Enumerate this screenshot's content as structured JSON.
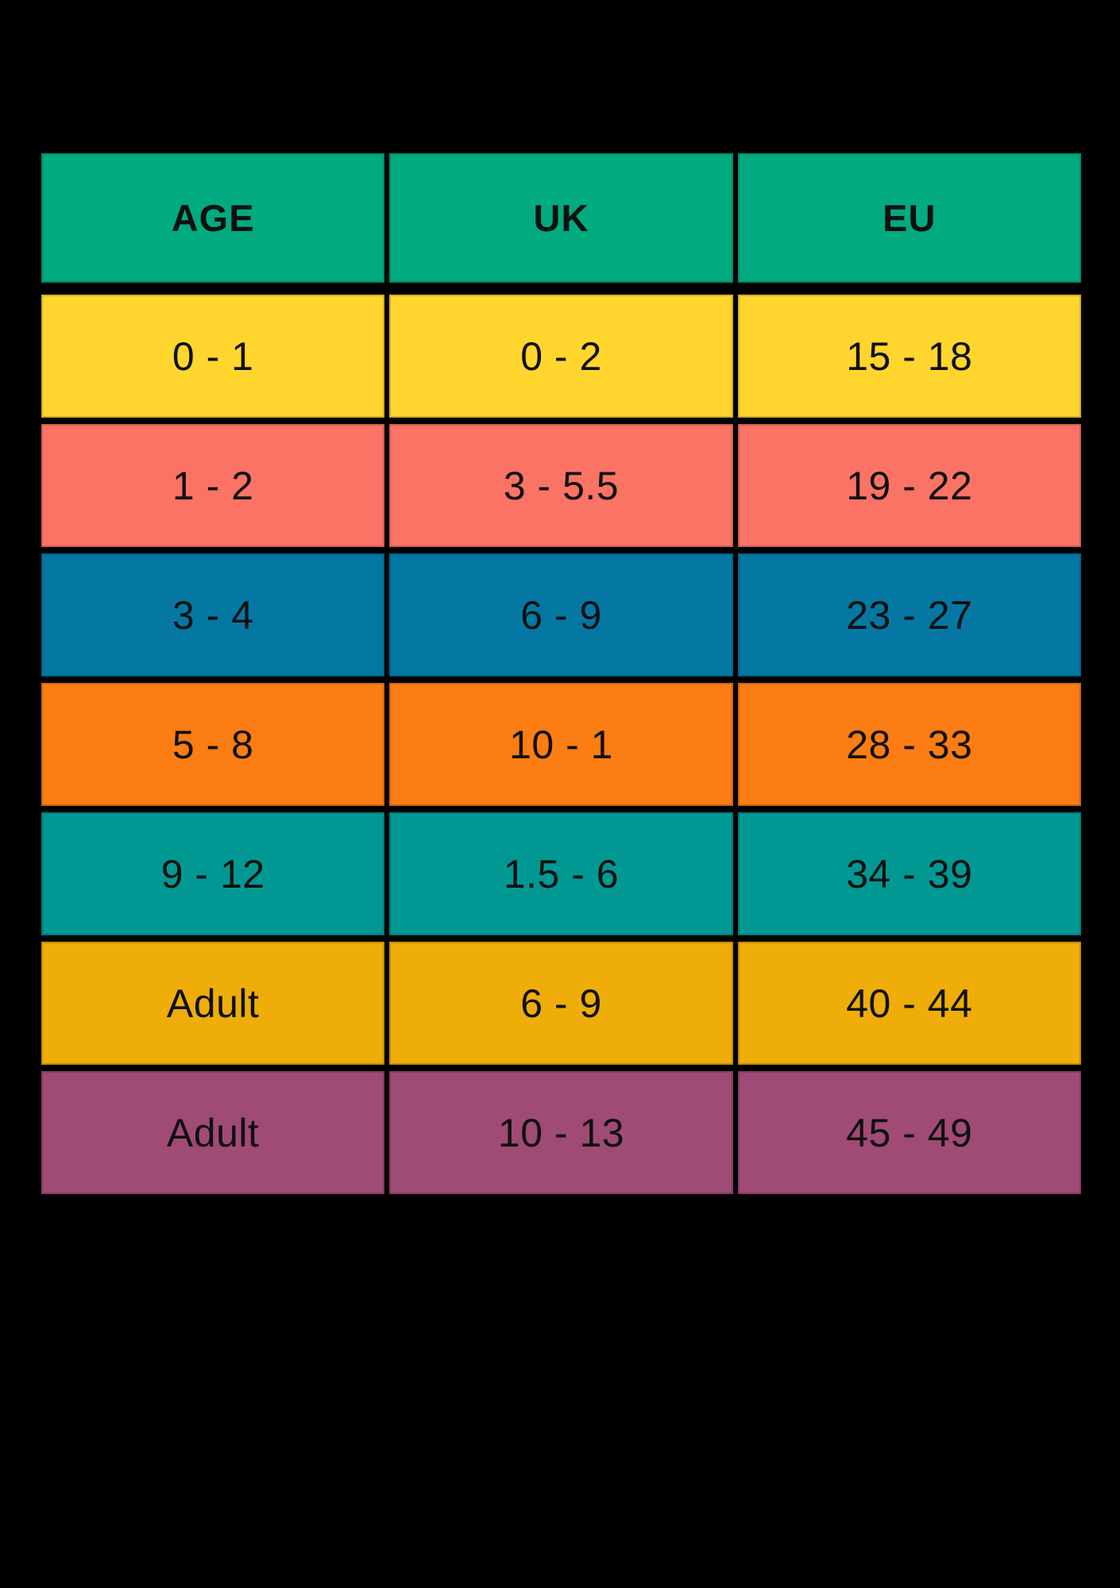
{
  "page": {
    "background_color": "#000000",
    "text_color": "#101010"
  },
  "table": {
    "header": {
      "background_color": "#02AA7F",
      "columns": [
        "AGE",
        "UK",
        "EU"
      ]
    },
    "rows": [
      {
        "background_color": "#FFD52E",
        "cells": [
          "0 - 1",
          "0 - 2",
          "15 - 18"
        ]
      },
      {
        "background_color": "#FB7365",
        "cells": [
          "1 - 2",
          "3 - 5.5",
          "19 - 22"
        ]
      },
      {
        "background_color": "#0478A3",
        "cells": [
          "3 - 4",
          "6 - 9",
          "23 - 27"
        ]
      },
      {
        "background_color": "#FB7D13",
        "cells": [
          "5 - 8",
          "10 - 1",
          "28 - 33"
        ]
      },
      {
        "background_color": "#019894",
        "cells": [
          "9 - 12",
          "1.5 - 6",
          "34 - 39"
        ]
      },
      {
        "background_color": "#EEAD08",
        "cells": [
          "Adult",
          "6 - 9",
          "40 - 44"
        ]
      },
      {
        "background_color": "#A04A76",
        "cells": [
          "Adult",
          "10 - 13",
          "45 - 49"
        ]
      }
    ]
  },
  "chart_data": {
    "type": "table",
    "title": "",
    "columns": [
      "AGE",
      "UK",
      "EU"
    ],
    "rows": [
      [
        "0 - 1",
        "0 - 2",
        "15 - 18"
      ],
      [
        "1 - 2",
        "3 - 5.5",
        "19 - 22"
      ],
      [
        "3 - 4",
        "6 - 9",
        "23 - 27"
      ],
      [
        "5 - 8",
        "10 - 1",
        "28 - 33"
      ],
      [
        "9 - 12",
        "1.5 - 6",
        "34 - 39"
      ],
      [
        "Adult",
        "6 - 9",
        "40 - 44"
      ],
      [
        "Adult",
        "10 - 13",
        "45 - 49"
      ]
    ]
  }
}
